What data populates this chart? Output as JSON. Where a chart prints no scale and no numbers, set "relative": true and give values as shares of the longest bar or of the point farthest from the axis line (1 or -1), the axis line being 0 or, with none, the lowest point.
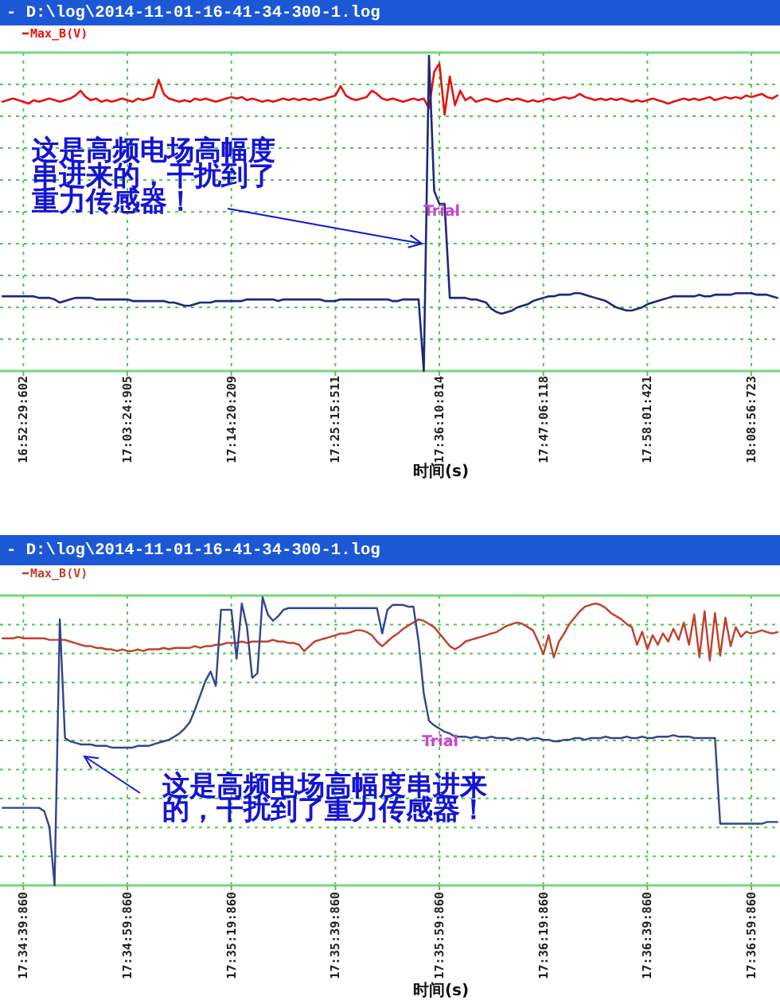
{
  "chart_data": [
    {
      "type": "line",
      "title": "- D:\\log\\2014-11-01-16-41-34-300-1.log",
      "xlabel": "时间(s)",
      "relative": true,
      "grid": true,
      "legend": "top left",
      "categories": [
        null,
        null,
        null,
        null,
        "16:52:29:602",
        null,
        null,
        null,
        null,
        null,
        null,
        null,
        null,
        null,
        null,
        null,
        null,
        null,
        null,
        null,
        null,
        null,
        null,
        null,
        "17:03:24:905",
        null,
        null,
        null,
        null,
        null,
        null,
        null,
        null,
        null,
        null,
        null,
        null,
        null,
        null,
        null,
        null,
        null,
        null,
        null,
        "17:14:20:209",
        null,
        null,
        null,
        null,
        null,
        null,
        null,
        null,
        null,
        null,
        null,
        null,
        null,
        null,
        null,
        null,
        null,
        null,
        null,
        "17:25:15:511",
        null,
        null,
        null,
        null,
        null,
        null,
        null,
        null,
        null,
        null,
        null,
        null,
        null,
        null,
        null,
        null,
        null,
        null,
        null,
        "17:36:10:814",
        null,
        null,
        null,
        null,
        null,
        null,
        null,
        null,
        null,
        null,
        null,
        null,
        null,
        null,
        null,
        null,
        null,
        null,
        null,
        "17:47:06:118",
        null,
        null,
        null,
        null,
        null,
        null,
        null,
        null,
        null,
        null,
        null,
        null,
        null,
        null,
        null,
        null,
        null,
        null,
        null,
        "17:58:01:421",
        null,
        null,
        null,
        null,
        null,
        null,
        null,
        null,
        null,
        null,
        null,
        null,
        null,
        null,
        null,
        null,
        null,
        null,
        null,
        "18:08:56:723",
        null,
        null,
        null,
        null,
        null
      ],
      "annotations": [
        "这是高频电场高幅度串进来的，干扰到了重力传感器！",
        "Trial"
      ],
      "series": [
        {
          "name": "Max_B(V)",
          "color": "#e8100c",
          "values": [
            0.854,
            0.859,
            0.864,
            0.859,
            0.854,
            0.848,
            0.859,
            0.854,
            0.859,
            0.864,
            0.859,
            0.854,
            0.859,
            0.864,
            0.874,
            0.889,
            0.869,
            0.859,
            0.864,
            0.854,
            0.859,
            0.854,
            0.859,
            0.864,
            0.859,
            0.854,
            0.864,
            0.859,
            0.864,
            0.869,
            0.924,
            0.879,
            0.864,
            0.859,
            0.854,
            0.859,
            0.854,
            0.864,
            0.859,
            0.864,
            0.859,
            0.854,
            0.859,
            0.864,
            0.869,
            0.864,
            0.869,
            0.859,
            0.864,
            0.859,
            0.854,
            0.859,
            0.854,
            0.859,
            0.864,
            0.859,
            0.864,
            0.859,
            0.864,
            0.859,
            0.864,
            0.859,
            0.864,
            0.869,
            0.874,
            0.904,
            0.874,
            0.864,
            0.859,
            0.864,
            0.869,
            0.889,
            0.879,
            0.864,
            0.859,
            0.864,
            0.859,
            0.854,
            0.859,
            0.864,
            0.859,
            0.864,
            0.833,
            0.949,
            0.975,
            0.813,
            0.934,
            0.843,
            0.889,
            0.859,
            0.869,
            0.854,
            0.859,
            0.864,
            0.859,
            0.854,
            0.859,
            0.864,
            0.859,
            0.864,
            0.859,
            0.854,
            0.859,
            0.854,
            0.859,
            0.864,
            0.859,
            0.864,
            0.869,
            0.864,
            0.869,
            0.879,
            0.869,
            0.864,
            0.859,
            0.864,
            0.859,
            0.864,
            0.859,
            0.864,
            0.859,
            0.854,
            0.859,
            0.854,
            0.859,
            0.864,
            0.859,
            0.854,
            0.848,
            0.854,
            0.859,
            0.864,
            0.859,
            0.864,
            0.859,
            0.864,
            0.869,
            0.859,
            0.864,
            0.869,
            0.864,
            0.869,
            0.864,
            0.874,
            0.869,
            0.874,
            0.879,
            0.869,
            0.864,
            0.874
          ]
        },
        {
          "color": "#1e2878",
          "values": [
            0.237,
            0.237,
            0.237,
            0.237,
            0.237,
            0.237,
            0.237,
            0.232,
            0.232,
            0.232,
            0.227,
            0.217,
            0.222,
            0.227,
            0.232,
            0.232,
            0.232,
            0.232,
            0.227,
            0.227,
            0.227,
            0.227,
            0.227,
            0.227,
            0.227,
            0.222,
            0.222,
            0.222,
            0.222,
            0.222,
            0.222,
            0.222,
            0.217,
            0.217,
            0.212,
            0.207,
            0.207,
            0.212,
            0.217,
            0.217,
            0.217,
            0.222,
            0.222,
            0.222,
            0.222,
            0.222,
            0.222,
            0.227,
            0.227,
            0.227,
            0.227,
            0.227,
            0.227,
            0.222,
            0.227,
            0.227,
            0.227,
            0.227,
            0.227,
            0.227,
            0.227,
            0.227,
            0.222,
            0.222,
            0.222,
            0.227,
            0.227,
            0.227,
            0.227,
            0.227,
            0.227,
            0.227,
            0.227,
            0.227,
            0.227,
            0.222,
            0.222,
            0.227,
            0.227,
            0.227,
            0.227,
            0,
            1,
            0.571,
            0.53,
            0.53,
            0.232,
            0.232,
            0.232,
            0.232,
            0.227,
            0.227,
            0.222,
            0.217,
            0.197,
            0.187,
            0.182,
            0.187,
            0.192,
            0.202,
            0.207,
            0.212,
            0.222,
            0.227,
            0.232,
            0.237,
            0.237,
            0.242,
            0.242,
            0.242,
            0.247,
            0.247,
            0.242,
            0.237,
            0.232,
            0.227,
            0.222,
            0.212,
            0.202,
            0.197,
            0.192,
            0.192,
            0.197,
            0.202,
            0.212,
            0.217,
            0.222,
            0.227,
            0.232,
            0.237,
            0.237,
            0.237,
            0.237,
            0.237,
            0.242,
            0.237,
            0.237,
            0.242,
            0.242,
            0.242,
            0.242,
            0.247,
            0.247,
            0.247,
            0.247,
            0.242,
            0.242,
            0.242,
            0.237,
            0.232
          ]
        }
      ]
    },
    {
      "type": "line",
      "title": "- D:\\log\\2014-11-01-16-41-34-300-1.log",
      "xlabel": "时间(s)",
      "relative": true,
      "grid": true,
      "legend": "top left",
      "categories": [
        null,
        null,
        null,
        null,
        "17:34:39:860",
        null,
        null,
        null,
        null,
        null,
        null,
        null,
        null,
        null,
        null,
        null,
        null,
        null,
        null,
        null,
        null,
        null,
        null,
        null,
        "17:34:59:860",
        null,
        null,
        null,
        null,
        null,
        null,
        null,
        null,
        null,
        null,
        null,
        null,
        null,
        null,
        null,
        null,
        null,
        null,
        null,
        "17:35:19:860",
        null,
        null,
        null,
        null,
        null,
        null,
        null,
        null,
        null,
        null,
        null,
        null,
        null,
        null,
        null,
        null,
        null,
        null,
        null,
        "17:35:39:860",
        null,
        null,
        null,
        null,
        null,
        null,
        null,
        null,
        null,
        null,
        null,
        null,
        null,
        null,
        null,
        null,
        null,
        null,
        null,
        "17:35:59:860",
        null,
        null,
        null,
        null,
        null,
        null,
        null,
        null,
        null,
        null,
        null,
        null,
        null,
        null,
        null,
        null,
        null,
        null,
        null,
        "17:36:19:860",
        null,
        null,
        null,
        null,
        null,
        null,
        null,
        null,
        null,
        null,
        null,
        null,
        null,
        null,
        null,
        null,
        null,
        null,
        null,
        "17:36:39:860",
        null,
        null,
        null,
        null,
        null,
        null,
        null,
        null,
        null,
        null,
        null,
        null,
        null,
        null,
        null,
        null,
        null,
        null,
        null,
        "17:36:59:860",
        null,
        null,
        null,
        null,
        null
      ],
      "annotations": [
        "这是高频电场高幅度串进来的，干扰到了重力传感器！",
        "Trial"
      ],
      "series": [
        {
          "name": "Max_B(V)",
          "color": "#c0402c",
          "values": [
            0.857,
            0.857,
            0.857,
            0.862,
            0.857,
            0.857,
            0.857,
            0.857,
            0.857,
            0.852,
            0.852,
            0.852,
            0.852,
            0.846,
            0.841,
            0.835,
            0.83,
            0.83,
            0.824,
            0.824,
            0.819,
            0.819,
            0.813,
            0.819,
            0.813,
            0.813,
            0.819,
            0.813,
            0.819,
            0.819,
            0.819,
            0.824,
            0.819,
            0.824,
            0.824,
            0.824,
            0.824,
            0.83,
            0.824,
            0.83,
            0.83,
            0.835,
            0.835,
            0.841,
            0.841,
            0.841,
            0.846,
            0.841,
            0.846,
            0.846,
            0.846,
            0.846,
            0.852,
            0.846,
            0.846,
            0.841,
            0.841,
            0.835,
            0.813,
            0.83,
            0.846,
            0.852,
            0.857,
            0.862,
            0.868,
            0.874,
            0.874,
            0.879,
            0.885,
            0.885,
            0.879,
            0.868,
            0.846,
            0.83,
            0.846,
            0.862,
            0.874,
            0.89,
            0.901,
            0.912,
            0.923,
            0.918,
            0.907,
            0.896,
            0.874,
            0.852,
            0.83,
            0.819,
            0.83,
            0.846,
            0.852,
            0.857,
            0.862,
            0.868,
            0.874,
            0.879,
            0.89,
            0.901,
            0.907,
            0.912,
            0.907,
            0.896,
            0.885,
            0.846,
            0.802,
            0.868,
            0.791,
            0.846,
            0.874,
            0.907,
            0.929,
            0.951,
            0.967,
            0.973,
            0.978,
            0.973,
            0.962,
            0.945,
            0.934,
            0.923,
            0.907,
            0.896,
            0.835,
            0.88,
            0.819,
            0.868,
            0.835,
            0.874,
            0.846,
            0.89,
            0.852,
            0.912,
            0.835,
            0.94,
            0.791,
            0.951,
            0.78,
            0.945,
            0.797,
            0.929,
            0.83,
            0.896,
            0.862,
            0.88,
            0.874,
            0.879,
            0.885,
            0.879,
            0.874,
            0.879
          ]
        },
        {
          "color": "#34448c",
          "values": [
            0.269,
            0.269,
            0.269,
            0.269,
            0.269,
            0.269,
            0.269,
            0.269,
            0.258,
            0.203,
            0,
            0.923,
            0.511,
            0.5,
            0.495,
            0.489,
            0.489,
            0.489,
            0.484,
            0.484,
            0.484,
            0.478,
            0.478,
            0.478,
            0.478,
            0.478,
            0.484,
            0.484,
            0.484,
            0.489,
            0.495,
            0.5,
            0.505,
            0.516,
            0.527,
            0.544,
            0.566,
            0.61,
            0.659,
            0.709,
            0.742,
            0.692,
            0.956,
            0.956,
            0.956,
            0.786,
            0.978,
            0.896,
            0.72,
            0.736,
            1,
            0.94,
            0.918,
            0.934,
            0.956,
            0.962,
            0.962,
            0.962,
            0.962,
            0.962,
            0.962,
            0.962,
            0.962,
            0.962,
            0.962,
            0.962,
            0.962,
            0.962,
            0.962,
            0.962,
            0.962,
            0.962,
            0.962,
            0.874,
            0.956,
            0.973,
            0.973,
            0.973,
            0.967,
            0.967,
            0.846,
            0.665,
            0.571,
            0.555,
            0.544,
            0.533,
            0.527,
            0.516,
            0.516,
            0.516,
            0.511,
            0.516,
            0.511,
            0.511,
            0.516,
            0.511,
            0.511,
            0.511,
            0.505,
            0.511,
            0.511,
            0.505,
            0.511,
            0.511,
            0.505,
            0.505,
            0.5,
            0.5,
            0.505,
            0.505,
            0.511,
            0.511,
            0.505,
            0.511,
            0.511,
            0.511,
            0.516,
            0.511,
            0.511,
            0.511,
            0.516,
            0.511,
            0.511,
            0.516,
            0.511,
            0.511,
            0.516,
            0.516,
            0.516,
            0.521,
            0.516,
            0.516,
            0.516,
            0.511,
            0.511,
            0.511,
            0.511,
            0.511,
            0.214,
            0.214,
            0.214,
            0.214,
            0.214,
            0.214,
            0.214,
            0.214,
            0.214,
            0.22,
            0.22,
            0.22
          ]
        }
      ]
    }
  ]
}
